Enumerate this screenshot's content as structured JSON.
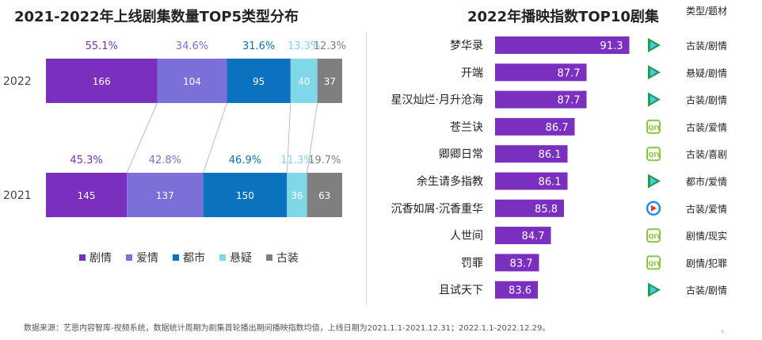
{
  "left_title": "2021-2022年上线剧集数量TOP5类型分布",
  "right_title": "2022年播映指数TOP10剧集",
  "category_header": "类型/题材",
  "footnote": "数据来源：艺恩内容智库-视频系统，数据统计周期为剧集首轮播出期间播映指数均值，上线日期为2021.1.1-2021.12.31；2022.1.1-2022.12.29。",
  "watermark": "⁶",
  "colors": {
    "drama": "#7b2fbe",
    "romance": "#7b6fd8",
    "urban": "#0a72bf",
    "suspense": "#7fd7e8",
    "costume": "#7f7f7f",
    "bar_right": "#7b2fbe"
  },
  "chart_data": [
    {
      "type": "bar",
      "orientation": "horizontal-stacked",
      "title": "2021-2022年上线剧集数量TOP5类型分布",
      "categories": [
        "2022",
        "2021"
      ],
      "series": [
        {
          "name": "剧情",
          "values": [
            166,
            145
          ],
          "percent_labels": [
            "55.1%",
            "45.3%"
          ],
          "color_key": "drama"
        },
        {
          "name": "爱情",
          "values": [
            104,
            137
          ],
          "percent_labels": [
            "34.6%",
            "42.8%"
          ],
          "color_key": "romance"
        },
        {
          "name": "都市",
          "values": [
            95,
            150
          ],
          "percent_labels": [
            "31.6%",
            "46.9%"
          ],
          "color_key": "urban"
        },
        {
          "name": "悬疑",
          "values": [
            40,
            36
          ],
          "percent_labels": [
            "13.3%",
            "11.3%"
          ],
          "color_key": "suspense"
        },
        {
          "name": "古装",
          "values": [
            37,
            63
          ],
          "percent_labels": [
            "12.3%",
            "19.7%"
          ],
          "color_key": "costume"
        }
      ],
      "legend": "bottom"
    },
    {
      "type": "bar",
      "orientation": "horizontal",
      "title": "2022年播映指数TOP10剧集",
      "categories": [
        "梦华录",
        "开端",
        "星汉灿烂·月升沧海",
        "苍兰诀",
        "卿卿日常",
        "余生请多指教",
        "沉香如屑·沉香重华",
        "人世间",
        "罚罪",
        "且试天下"
      ],
      "values": [
        91.3,
        87.7,
        87.7,
        86.7,
        86.1,
        86.1,
        85.8,
        84.7,
        83.7,
        83.6
      ],
      "platforms": [
        "tencent",
        "tencent",
        "tencent",
        "iqiyi",
        "iqiyi",
        "tencent",
        "youku",
        "iqiyi",
        "iqiyi",
        "tencent"
      ],
      "genres": [
        "古装/剧情",
        "悬疑/剧情",
        "古装/剧情",
        "古装/爱情",
        "古装/喜剧",
        "都市/爱情",
        "古装/爱情",
        "剧情/现实",
        "剧情/犯罪",
        "古装/剧情"
      ],
      "xlim": [
        80,
        92
      ]
    }
  ]
}
